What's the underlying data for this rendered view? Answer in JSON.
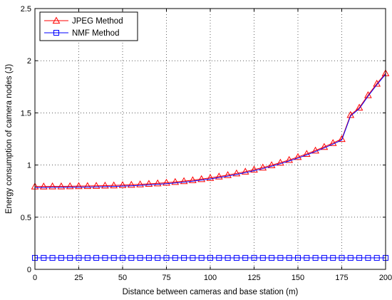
{
  "chart_data": {
    "type": "line",
    "xlabel": "Distance between cameras and base station (m)",
    "ylabel": "Energy consumption of camera nodes (J)",
    "xlim": [
      0,
      200
    ],
    "ylim": [
      0,
      2.5
    ],
    "xticks": [
      "0",
      "25",
      "50",
      "75",
      "100",
      "125",
      "150",
      "175",
      "200"
    ],
    "yticks": [
      "0",
      "0.5",
      "1",
      "1.5",
      "2",
      "2.5"
    ],
    "grid": true,
    "legend": "top-left",
    "x": [
      0,
      5,
      10,
      15,
      20,
      25,
      30,
      35,
      40,
      45,
      50,
      55,
      60,
      65,
      70,
      75,
      80,
      85,
      90,
      95,
      100,
      105,
      110,
      115,
      120,
      125,
      130,
      135,
      140,
      145,
      150,
      155,
      160,
      165,
      170,
      175,
      180,
      185,
      190,
      195,
      200
    ],
    "series": [
      {
        "name": "JPEG Method",
        "color": "#ff0000",
        "marker": "triangle",
        "values": [
          0.795,
          0.795,
          0.796,
          0.796,
          0.797,
          0.798,
          0.799,
          0.801,
          0.803,
          0.805,
          0.808,
          0.811,
          0.815,
          0.82,
          0.825,
          0.831,
          0.838,
          0.846,
          0.855,
          0.866,
          0.877,
          0.89,
          0.904,
          0.92,
          0.937,
          0.956,
          0.976,
          0.999,
          1.023,
          1.049,
          1.077,
          1.107,
          1.139,
          1.174,
          1.211,
          1.25,
          1.48,
          1.55,
          1.67,
          1.78,
          1.88
        ]
      },
      {
        "name": "NMF Method",
        "color": "#0000ff",
        "marker": "square",
        "values": [
          0.11,
          0.11,
          0.11,
          0.11,
          0.11,
          0.11,
          0.11,
          0.11,
          0.11,
          0.11,
          0.11,
          0.11,
          0.11,
          0.11,
          0.11,
          0.11,
          0.11,
          0.11,
          0.11,
          0.11,
          0.11,
          0.11,
          0.11,
          0.11,
          0.11,
          0.11,
          0.11,
          0.11,
          0.11,
          0.11,
          0.11,
          0.11,
          0.11,
          0.11,
          0.11,
          0.11,
          0.11,
          0.11,
          0.11,
          0.11,
          0.11
        ]
      },
      {
        "name": "",
        "color": "#0000ff",
        "marker": "none",
        "values": [
          0.785,
          0.785,
          0.786,
          0.786,
          0.787,
          0.788,
          0.789,
          0.791,
          0.793,
          0.795,
          0.798,
          0.801,
          0.805,
          0.81,
          0.815,
          0.821,
          0.828,
          0.836,
          0.845,
          0.856,
          0.867,
          0.88,
          0.894,
          0.91,
          0.927,
          0.946,
          0.966,
          0.989,
          1.013,
          1.039,
          1.067,
          1.097,
          1.129,
          1.164,
          1.201,
          1.24,
          1.47,
          1.54,
          1.66,
          1.77,
          1.87
        ]
      }
    ]
  }
}
